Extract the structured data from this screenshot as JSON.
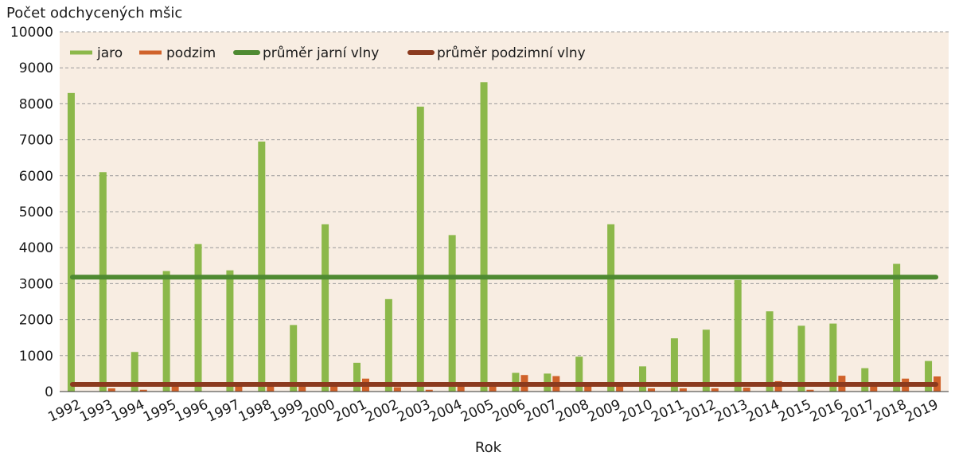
{
  "chart_data": {
    "type": "bar",
    "ylabel": "Počet odchycených mšic",
    "xlabel": "Rok",
    "ylim": [
      0,
      10000
    ],
    "yticks": [
      0,
      1000,
      2000,
      3000,
      4000,
      5000,
      6000,
      7000,
      8000,
      9000,
      10000
    ],
    "grid": "horizontal dashed",
    "legend_position": "top-left",
    "categories": [
      "1992",
      "1993",
      "1994",
      "1995",
      "1996",
      "1997",
      "1998",
      "1999",
      "2000",
      "2001",
      "2002",
      "2003",
      "2004",
      "2005",
      "2006",
      "2007",
      "2008",
      "2009",
      "2010",
      "2011",
      "2012",
      "2013",
      "2014",
      "2015",
      "2016",
      "2017",
      "2018",
      "2019"
    ],
    "series": [
      {
        "name": "jaro",
        "kind": "bar",
        "color": "#8cb84a",
        "values": [
          8300,
          6100,
          1100,
          3350,
          4100,
          3370,
          6950,
          1850,
          4650,
          800,
          2570,
          7920,
          4350,
          8600,
          520,
          500,
          970,
          4650,
          700,
          1480,
          1720,
          3100,
          2230,
          1830,
          1890,
          650,
          3550,
          850
        ]
      },
      {
        "name": "podzim",
        "kind": "bar",
        "color": "#d0622a",
        "values": [
          0,
          90,
          50,
          250,
          0,
          260,
          200,
          200,
          250,
          360,
          120,
          50,
          230,
          230,
          460,
          430,
          200,
          240,
          90,
          90,
          90,
          110,
          290,
          50,
          440,
          210,
          360,
          420
        ]
      },
      {
        "name": "průměr jarní vlny",
        "kind": "line",
        "color": "#4f8a32",
        "value": 3180
      },
      {
        "name": "průměr podzimní vlny",
        "kind": "line",
        "color": "#8b3a1e",
        "value": 200
      }
    ]
  }
}
